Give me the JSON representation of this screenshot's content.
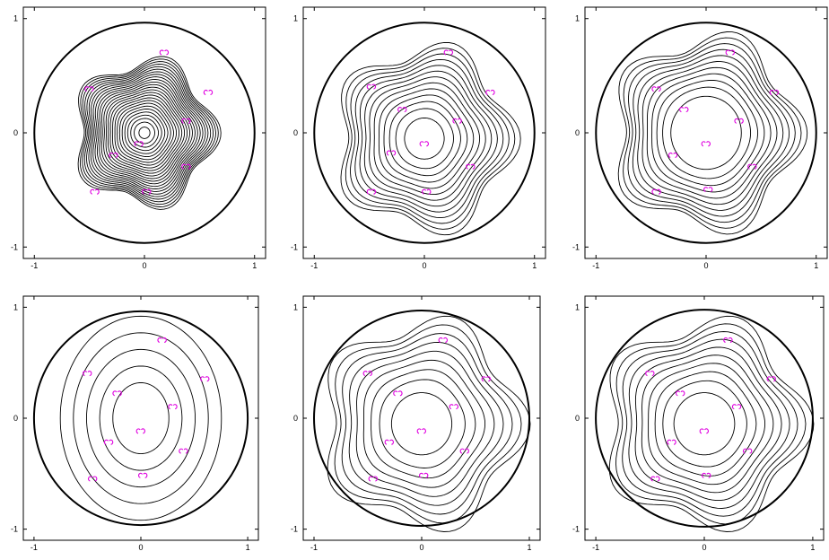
{
  "figure": {
    "rows": 2,
    "cols": 3,
    "marker_color": "#e000e0",
    "line_color": "#000000"
  },
  "chart_data": [
    {
      "type": "contour",
      "xlim": [
        -1.1,
        1.1
      ],
      "ylim": [
        -1.1,
        1.1
      ],
      "xticks": [
        "-1",
        "0",
        "1"
      ],
      "yticks": [
        "-1",
        "0",
        "1"
      ],
      "levels": 26,
      "contour_shape": "pentagon",
      "contour_extent": 0.62,
      "inner_radius": 0.05,
      "center": [
        0,
        0.0
      ],
      "points": [
        [
          0.18,
          0.7
        ],
        [
          -0.5,
          0.38
        ],
        [
          0.58,
          0.35
        ],
        [
          -0.28,
          -0.2
        ],
        [
          0.38,
          0.1
        ],
        [
          -0.05,
          -0.1
        ],
        [
          0.38,
          -0.3
        ],
        [
          -0.45,
          -0.52
        ],
        [
          0.02,
          -0.52
        ]
      ]
    },
    {
      "type": "contour",
      "xlim": [
        -1.1,
        1.1
      ],
      "ylim": [
        -1.1,
        1.1
      ],
      "xticks": [
        "-1",
        "0",
        "1"
      ],
      "yticks": [
        "-1",
        "0",
        "1"
      ],
      "levels": 13,
      "contour_shape": "pentagon",
      "contour_extent": 0.78,
      "inner_radius": 0.18,
      "center": [
        0.0,
        -0.05
      ],
      "points": [
        [
          0.22,
          0.7
        ],
        [
          -0.48,
          0.4
        ],
        [
          0.6,
          0.35
        ],
        [
          -0.2,
          0.2
        ],
        [
          0.3,
          0.1
        ],
        [
          0.0,
          -0.1
        ],
        [
          -0.3,
          -0.18
        ],
        [
          0.42,
          -0.3
        ],
        [
          -0.48,
          -0.52
        ],
        [
          0.02,
          -0.52
        ]
      ]
    },
    {
      "type": "contour",
      "xlim": [
        -1.1,
        1.1
      ],
      "ylim": [
        -1.1,
        1.1
      ],
      "xticks": [
        "-1",
        "0",
        "1"
      ],
      "yticks": [
        "-1",
        "0",
        "1"
      ],
      "levels": 11,
      "contour_shape": "pentagon",
      "contour_extent": 0.82,
      "inner_radius": 0.32,
      "center": [
        0.0,
        0.0
      ],
      "points": [
        [
          0.22,
          0.7
        ],
        [
          -0.45,
          0.38
        ],
        [
          0.62,
          0.35
        ],
        [
          -0.2,
          0.2
        ],
        [
          0.3,
          0.1
        ],
        [
          0.0,
          -0.1
        ],
        [
          -0.3,
          -0.2
        ],
        [
          0.42,
          -0.3
        ],
        [
          -0.45,
          -0.52
        ],
        [
          0.02,
          -0.5
        ]
      ]
    },
    {
      "type": "contour",
      "xlim": [
        -1.1,
        1.1
      ],
      "ylim": [
        -1.1,
        1.1
      ],
      "xticks": [
        "-1",
        "0",
        "1"
      ],
      "yticks": [
        "-1",
        "0",
        "1"
      ],
      "levels": 5,
      "contour_shape": "ellipse",
      "contour_extent": 0.92,
      "inner_radius": 0.32,
      "center": [
        0.0,
        0.0
      ],
      "points": [
        [
          0.2,
          0.7
        ],
        [
          -0.5,
          0.4
        ],
        [
          0.6,
          0.35
        ],
        [
          -0.22,
          0.22
        ],
        [
          0.3,
          0.1
        ],
        [
          0.0,
          -0.12
        ],
        [
          -0.3,
          -0.22
        ],
        [
          0.4,
          -0.3
        ],
        [
          -0.45,
          -0.55
        ],
        [
          0.02,
          -0.52
        ]
      ]
    },
    {
      "type": "contour",
      "xlim": [
        -1.1,
        1.1
      ],
      "ylim": [
        -1.1,
        1.1
      ],
      "xticks": [
        "-1",
        "0",
        "1"
      ],
      "yticks": [
        "-1",
        "0",
        "1"
      ],
      "levels": 9,
      "contour_shape": "pentagon",
      "contour_extent": 0.9,
      "inner_radius": 0.28,
      "center": [
        0.0,
        -0.05
      ],
      "points": [
        [
          0.2,
          0.7
        ],
        [
          -0.5,
          0.4
        ],
        [
          0.6,
          0.35
        ],
        [
          -0.22,
          0.22
        ],
        [
          0.3,
          0.1
        ],
        [
          0.0,
          -0.12
        ],
        [
          -0.3,
          -0.22
        ],
        [
          0.4,
          -0.3
        ],
        [
          -0.45,
          -0.55
        ],
        [
          0.02,
          -0.52
        ]
      ]
    },
    {
      "type": "contour",
      "xlim": [
        -1.1,
        1.1
      ],
      "ylim": [
        -1.1,
        1.1
      ],
      "xticks": [
        "-1",
        "0",
        "1"
      ],
      "yticks": [
        "-1",
        "0",
        "1"
      ],
      "levels": 10,
      "contour_shape": "pentagon",
      "contour_extent": 0.9,
      "inner_radius": 0.28,
      "center": [
        0.0,
        -0.05
      ],
      "points": [
        [
          0.22,
          0.7
        ],
        [
          -0.5,
          0.4
        ],
        [
          0.62,
          0.35
        ],
        [
          -0.22,
          0.22
        ],
        [
          0.3,
          0.1
        ],
        [
          0.0,
          -0.12
        ],
        [
          -0.3,
          -0.22
        ],
        [
          0.4,
          -0.3
        ],
        [
          -0.45,
          -0.55
        ],
        [
          0.02,
          -0.52
        ]
      ]
    }
  ]
}
